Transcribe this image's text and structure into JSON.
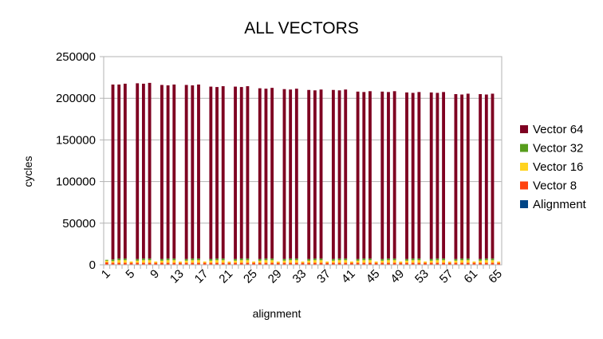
{
  "chart_data": {
    "type": "bar",
    "stacked": true,
    "title": "ALL VECTORS",
    "xlabel": "alignment",
    "ylabel": "cycles",
    "ylim": [
      0,
      250000
    ],
    "yticks": [
      0,
      50000,
      100000,
      150000,
      200000,
      250000
    ],
    "grid": true,
    "legend_position": "right",
    "x": [
      1,
      2,
      3,
      4,
      5,
      6,
      7,
      8,
      9,
      10,
      11,
      12,
      13,
      14,
      15,
      16,
      17,
      18,
      19,
      20,
      21,
      22,
      23,
      24,
      25,
      26,
      27,
      28,
      29,
      30,
      31,
      32,
      33,
      34,
      35,
      36,
      37,
      38,
      39,
      40,
      41,
      42,
      43,
      44,
      45,
      46,
      47,
      48,
      49,
      50,
      51,
      52,
      53,
      54,
      55,
      56,
      57,
      58,
      59,
      60,
      61,
      62,
      63,
      64,
      65
    ],
    "xtick_labels": [
      "1",
      "5",
      "9",
      "13",
      "17",
      "21",
      "25",
      "29",
      "33",
      "37",
      "41",
      "45",
      "49",
      "53",
      "57",
      "61",
      "65"
    ],
    "series": [
      {
        "name": "Alignment",
        "color": "#004586",
        "values": [
          0,
          0,
          0,
          0,
          0,
          0,
          0,
          0,
          0,
          0,
          0,
          0,
          0,
          0,
          0,
          0,
          0,
          0,
          0,
          0,
          0,
          0,
          0,
          0,
          0,
          0,
          0,
          0,
          0,
          0,
          0,
          0,
          0,
          0,
          0,
          0,
          0,
          0,
          0,
          0,
          0,
          0,
          0,
          0,
          0,
          0,
          0,
          0,
          0,
          0,
          0,
          0,
          0,
          0,
          0,
          0,
          0,
          0,
          0,
          0,
          0,
          0,
          0,
          0,
          0
        ]
      },
      {
        "name": "Vector 8",
        "color": "#ff420e",
        "values": [
          3000,
          2500,
          2500,
          2500,
          2500,
          2500,
          2500,
          2500,
          2500,
          2500,
          2500,
          2500,
          2500,
          2500,
          2500,
          2500,
          2500,
          2500,
          2500,
          2500,
          2500,
          2500,
          2500,
          2500,
          2500,
          2500,
          2500,
          2500,
          2500,
          2500,
          2500,
          2500,
          2500,
          2500,
          2500,
          2500,
          2500,
          2500,
          2500,
          2500,
          2500,
          2500,
          2500,
          2500,
          2500,
          2500,
          2500,
          2500,
          2500,
          2500,
          2500,
          2500,
          2500,
          2500,
          2500,
          2500,
          2500,
          2500,
          2500,
          2500,
          2500,
          2500,
          2500,
          2500,
          2500
        ]
      },
      {
        "name": "Vector 16",
        "color": "#ffd320",
        "values": [
          2000,
          2000,
          3000,
          3000,
          1500,
          2500,
          3000,
          3000,
          1500,
          2500,
          3000,
          3000,
          1500,
          2500,
          3000,
          3000,
          1500,
          2500,
          3000,
          3000,
          1500,
          2500,
          3000,
          3000,
          1500,
          2500,
          3000,
          3000,
          1500,
          2500,
          3000,
          3000,
          1500,
          2500,
          3000,
          3000,
          1500,
          2500,
          3000,
          3000,
          1500,
          2500,
          3000,
          3000,
          1500,
          2500,
          3000,
          3000,
          1500,
          2500,
          3000,
          3000,
          1500,
          2500,
          3000,
          3000,
          1500,
          2500,
          3000,
          3000,
          1500,
          2500,
          3000,
          3000,
          1500
        ]
      },
      {
        "name": "Vector 32",
        "color": "#579d1c",
        "values": [
          1000,
          2000,
          2000,
          2000,
          0,
          2000,
          2000,
          2000,
          0,
          2000,
          2000,
          2000,
          0,
          2000,
          2000,
          2000,
          0,
          2000,
          2000,
          2000,
          0,
          2000,
          2000,
          2000,
          0,
          2000,
          2000,
          2000,
          0,
          2000,
          2000,
          2000,
          0,
          2000,
          2000,
          2000,
          0,
          2000,
          2000,
          2000,
          0,
          2000,
          2000,
          2000,
          0,
          2000,
          2000,
          2000,
          0,
          2000,
          2000,
          2000,
          0,
          2000,
          2000,
          2000,
          0,
          2000,
          2000,
          2000,
          0,
          2000,
          2000,
          2000,
          0
        ]
      },
      {
        "name": "Vector 64",
        "color": "#7e0021",
        "values": [
          0,
          210000,
          209000,
          210000,
          0,
          211000,
          210000,
          211000,
          0,
          209000,
          208000,
          209000,
          0,
          209000,
          208000,
          209000,
          0,
          207000,
          206000,
          207000,
          0,
          207000,
          206000,
          207000,
          0,
          205000,
          204000,
          205000,
          0,
          204000,
          203000,
          204000,
          0,
          203000,
          202000,
          203000,
          0,
          203000,
          202000,
          203000,
          0,
          201000,
          200000,
          201000,
          0,
          201000,
          200000,
          201000,
          0,
          200000,
          199000,
          200000,
          0,
          200000,
          199000,
          200000,
          0,
          198000,
          197000,
          198000,
          0,
          198000,
          197000,
          198000,
          0
        ]
      }
    ]
  }
}
